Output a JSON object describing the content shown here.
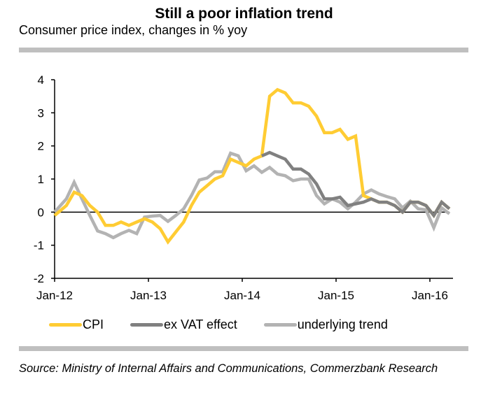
{
  "header": {
    "title": "Still a poor inflation trend",
    "subtitle": "Consumer price index, changes in % yoy"
  },
  "footer": {
    "source": "Source: Ministry of Internal Affairs and Communications, Commerzbank Research"
  },
  "chart_data": {
    "type": "line",
    "title": "Still a poor inflation trend",
    "subtitle": "Consumer price index, changes in % yoy",
    "xlabel": "",
    "ylabel": "",
    "x_start": "Jan-12",
    "x_frequency": "monthly",
    "x_count": 51,
    "x_ticks": [
      "Jan-12",
      "Jan-13",
      "Jan-14",
      "Jan-15",
      "Jan-16"
    ],
    "y_ticks": [
      4,
      3,
      2,
      1,
      0,
      -1,
      -2
    ],
    "ylim": [
      -2,
      4
    ],
    "grid": false,
    "legend_position": "bottom",
    "series": [
      {
        "name": "CPI",
        "color": "#FFCC33",
        "start_index": 0,
        "values": [
          -0.1,
          0.2,
          0.6,
          0.5,
          0.2,
          0.0,
          -0.4,
          -0.4,
          -0.3,
          -0.4,
          -0.3,
          -0.2,
          -0.3,
          -0.5,
          -0.9,
          -0.6,
          -0.3,
          0.2,
          0.6,
          0.8,
          1.0,
          1.1,
          1.6,
          1.5,
          1.4,
          1.6,
          1.7,
          3.5,
          3.7,
          3.6,
          3.3,
          3.3,
          3.2,
          2.9,
          2.4,
          2.4,
          2.5,
          2.2,
          2.3,
          0.5,
          0.4,
          0.3,
          0.3,
          0.2,
          0.0,
          0.3,
          0.3,
          0.2,
          -0.1,
          0.3,
          0.1
        ]
      },
      {
        "name": "ex VAT effect",
        "color": "#808080",
        "start_index": 26,
        "values": [
          1.7,
          1.8,
          1.7,
          1.6,
          1.3,
          1.3,
          1.15,
          0.85,
          0.4,
          0.4,
          0.45,
          0.2,
          0.25,
          0.3,
          0.4,
          0.3,
          0.3,
          0.2,
          0.0,
          0.3,
          0.3,
          0.2,
          -0.1,
          0.3,
          0.1
        ]
      },
      {
        "name": "underlying trend",
        "color": "#B3B3B3",
        "start_index": 0,
        "values": [
          0.0,
          0.4,
          0.9,
          0.4,
          -0.1,
          -0.57,
          -0.65,
          -0.77,
          -0.65,
          -0.55,
          -0.65,
          -0.15,
          -0.12,
          -0.1,
          -0.28,
          -0.1,
          0.1,
          0.5,
          0.97,
          1.03,
          1.22,
          1.22,
          1.78,
          1.7,
          1.25,
          1.4,
          1.2,
          1.35,
          1.15,
          1.1,
          0.95,
          1.0,
          1.0,
          0.5,
          0.25,
          0.4,
          0.3,
          0.1,
          0.3,
          0.55,
          0.67,
          0.55,
          0.47,
          0.4,
          0.13,
          0.33,
          0.1,
          0.07,
          -0.47,
          0.13,
          -0.05
        ]
      }
    ]
  }
}
